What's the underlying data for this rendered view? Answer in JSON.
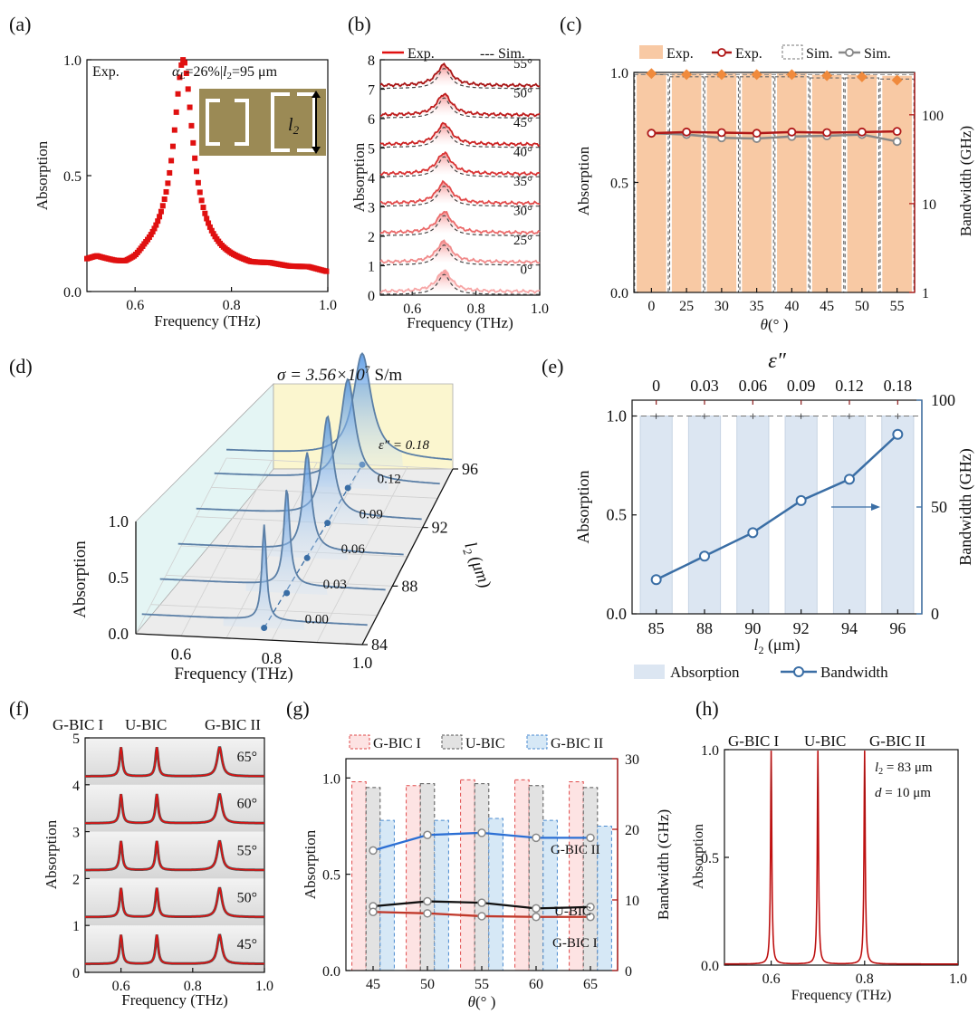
{
  "colors": {
    "red": "#e01010",
    "dark_red": "#b01818",
    "dark_red2": "#8b1a1a",
    "gray": "#777777",
    "orange_fill": "#f8c9a4",
    "orange_marker": "#f08a3c",
    "blue": "#3a6ea5",
    "light_blue": "#dce6f2",
    "pink": "#f07a82",
    "bright_blue": "#2b6fd4",
    "black": "#111111",
    "inset_gold": "#9b8a55"
  },
  "chart_data": [
    {
      "panel": "(a)",
      "type": "line",
      "xlabel": "Frequency (THz)",
      "ylabel": "Absorption",
      "xlim": [
        0.5,
        1.0
      ],
      "ylim": [
        0.0,
        1.0
      ],
      "xticks": [
        "0.6",
        "0.8",
        "1.0"
      ],
      "yticks": [
        "0.0",
        "0.5",
        "1.0"
      ],
      "legend_label": "Exp.",
      "annotation": "αL=26%|l2=95 μm",
      "annotation_parts": [
        "α",
        "L",
        "=26%|",
        "l",
        "2",
        "=95 μm"
      ],
      "inset_label": [
        "l",
        "2"
      ],
      "resonance": {
        "f0": 0.7,
        "gamma": 0.0235,
        "peak": 1.0
      },
      "baseline": [
        [
          0.5,
          0.13
        ],
        [
          0.52,
          0.14
        ],
        [
          0.54,
          0.125
        ],
        [
          0.56,
          0.11
        ],
        [
          0.58,
          0.1
        ],
        [
          0.6,
          0.11
        ],
        [
          0.62,
          0.14
        ],
        [
          0.66,
          0.18
        ],
        [
          0.7,
          0.18
        ],
        [
          0.74,
          0.16
        ],
        [
          0.78,
          0.13
        ],
        [
          0.8,
          0.12
        ],
        [
          0.84,
          0.105
        ],
        [
          0.88,
          0.11
        ],
        [
          0.92,
          0.1
        ],
        [
          0.96,
          0.1
        ],
        [
          1.0,
          0.08
        ]
      ]
    },
    {
      "panel": "(b)",
      "type": "line",
      "xlabel": "Frequency (THz)",
      "ylabel": "Absorption",
      "xlim": [
        0.5,
        1.0
      ],
      "ylim": [
        0,
        8
      ],
      "xticks": [
        "0.6",
        "0.8",
        "1.0"
      ],
      "yticks": [
        "0",
        "1",
        "2",
        "3",
        "4",
        "5",
        "6",
        "7",
        "8"
      ],
      "legend": [
        "Exp.",
        "--- Sim."
      ],
      "series": [
        {
          "angle": "0°",
          "offset": 0,
          "amp": 0.95
        },
        {
          "angle": "25°",
          "offset": 1,
          "amp": 0.95
        },
        {
          "angle": "30°",
          "offset": 2,
          "amp": 0.95
        },
        {
          "angle": "35°",
          "offset": 3,
          "amp": 0.95
        },
        {
          "angle": "40°",
          "offset": 4,
          "amp": 0.95
        },
        {
          "angle": "45°",
          "offset": 5,
          "amp": 0.95
        },
        {
          "angle": "50°",
          "offset": 6,
          "amp": 0.95
        },
        {
          "angle": "55°",
          "offset": 7,
          "amp": 0.95
        }
      ]
    },
    {
      "panel": "(c)",
      "type": "bar",
      "xlabel": "θ(° )",
      "xlabel_parts": [
        "θ",
        "(° )"
      ],
      "ylabel": "Absorption",
      "y2label": "Bandwidth (GHz)",
      "categories": [
        "0",
        "25",
        "30",
        "35",
        "40",
        "45",
        "50",
        "55"
      ],
      "ylim": [
        0.0,
        1.0
      ],
      "yticks": [
        "0.0",
        "0.5",
        "1.0"
      ],
      "y2_log_range": [
        1,
        300
      ],
      "y2ticks": [
        "1",
        "10",
        "100"
      ],
      "legend": [
        "Exp.",
        "Exp.",
        "Sim.",
        "Sim."
      ],
      "series": [
        {
          "name": "Exp. absorption (bars)",
          "values": [
            0.995,
            0.995,
            0.995,
            0.995,
            0.995,
            0.99,
            0.99,
            0.985
          ]
        },
        {
          "name": "Sim. absorption (dashed bars)",
          "values": [
            0.99,
            0.98,
            0.98,
            0.98,
            0.98,
            0.975,
            0.975,
            0.97
          ]
        },
        {
          "name": "Exp. absorption markers",
          "values": [
            0.995,
            0.99,
            0.99,
            0.99,
            0.99,
            0.985,
            0.98,
            0.965
          ]
        },
        {
          "name": "Exp. bandwidth (GHz)",
          "values": [
            62,
            64,
            63,
            62,
            64,
            63,
            64,
            65
          ]
        },
        {
          "name": "Sim. bandwidth (GHz)",
          "values": [
            62,
            60,
            55,
            54,
            57,
            58,
            60,
            50
          ]
        }
      ]
    },
    {
      "panel": "(d)",
      "type": "line",
      "title": "σ = 3.56×10^7 S/m",
      "title_parts": [
        "σ = 3.56×10",
        "7",
        " S/m"
      ],
      "xlabel": "Frequency (THz)",
      "ylabel": "Absorption",
      "zlabel": [
        "l",
        "2",
        " (μm)"
      ],
      "xticks": [
        "0.6",
        "0.8",
        "1.0"
      ],
      "yticks": [
        "0.0",
        "0.5",
        "1.0"
      ],
      "zticks": [
        "84",
        "88",
        "92",
        "96"
      ],
      "eps_label": "ε″ = 0.18",
      "series": [
        {
          "l2": 84.8,
          "eps": "0.00",
          "f0": 0.77,
          "width": 0.006,
          "peak": 0.85
        },
        {
          "l2": 87.2,
          "eps": "0.03",
          "f0": 0.78,
          "width": 0.008,
          "peak": 0.86
        },
        {
          "l2": 89.6,
          "eps": "0.06",
          "f0": 0.785,
          "width": 0.011,
          "peak": 0.87
        },
        {
          "l2": 92.0,
          "eps": "0.09",
          "f0": 0.79,
          "width": 0.015,
          "peak": 0.88
        },
        {
          "l2": 94.4,
          "eps": "0.12",
          "f0": 0.795,
          "width": 0.019,
          "peak": 0.9
        },
        {
          "l2": 96.0,
          "eps": "0.18",
          "f0": 0.8,
          "width": 0.024,
          "peak": 0.92
        }
      ]
    },
    {
      "panel": "(e)",
      "type": "bar",
      "top_axis_label": "ε″",
      "top_ticks": [
        "0",
        "0.03",
        "0.06",
        "0.09",
        "0.12",
        "0.18"
      ],
      "xlabel": "l2 (μm)",
      "xlabel_parts": [
        "l",
        "2",
        " (μm)"
      ],
      "ylabel": "Absorption",
      "y2label": "Bandwidth (GHz)",
      "categories": [
        "85",
        "88",
        "90",
        "92",
        "94",
        "96"
      ],
      "ylim": [
        0.0,
        1.0
      ],
      "yticks": [
        "0.0",
        "0.5",
        "1.0"
      ],
      "y2lim": [
        0,
        100
      ],
      "y2ticks": [
        "0",
        "50",
        "100"
      ],
      "legend": [
        "Absorption",
        "Bandwidth"
      ],
      "series": [
        {
          "name": "Absorption",
          "values": [
            1.0,
            1.0,
            1.0,
            1.0,
            1.0,
            1.0
          ]
        },
        {
          "name": "Bandwidth",
          "values": [
            16,
            27,
            38,
            53,
            63,
            84
          ]
        }
      ]
    },
    {
      "panel": "(f)",
      "type": "line",
      "xlabel": "Frequency (THz)",
      "ylabel": "Absorption",
      "xlim": [
        0.5,
        1.0
      ],
      "ylim": [
        0,
        5
      ],
      "xticks": [
        "0.6",
        "0.8",
        "1.0"
      ],
      "yticks": [
        "0",
        "1",
        "2",
        "3",
        "4",
        "5"
      ],
      "labels": [
        "G-BIC I",
        "U-BIC",
        "G-BIC II"
      ],
      "peaks": [
        0.6,
        0.7,
        0.875
      ],
      "series": [
        {
          "angle": "45°",
          "offset": 0
        },
        {
          "angle": "50°",
          "offset": 1
        },
        {
          "angle": "55°",
          "offset": 2
        },
        {
          "angle": "60°",
          "offset": 3
        },
        {
          "angle": "65°",
          "offset": 4
        }
      ]
    },
    {
      "panel": "(g)",
      "type": "bar",
      "xlabel": "θ(° )",
      "xlabel_parts": [
        "θ",
        "(° )"
      ],
      "ylabel": "Absorption",
      "y2label": "Bandwidth (GHz)",
      "categories": [
        "45",
        "50",
        "55",
        "60",
        "65"
      ],
      "ylim": [
        0.0,
        1.0
      ],
      "yticks": [
        "0.0",
        "0.5",
        "1.0"
      ],
      "y2lim": [
        0,
        30
      ],
      "y2ticks": [
        "0",
        "10",
        "20",
        "30"
      ],
      "legend": [
        "G-BIC I",
        "U-BIC",
        "G-BIC II"
      ],
      "line_labels": [
        "G-BIC II",
        "U-BIC",
        "G-BIC I"
      ],
      "series": [
        {
          "name": "G-BIC I absorption",
          "values": [
            0.98,
            0.96,
            0.99,
            0.99,
            0.98
          ]
        },
        {
          "name": "U-BIC absorption",
          "values": [
            0.95,
            0.97,
            0.97,
            0.96,
            0.95
          ]
        },
        {
          "name": "G-BIC II absorption",
          "values": [
            0.78,
            0.78,
            0.79,
            0.78,
            0.75
          ]
        },
        {
          "name": "G-BIC II bandwidth (GHz)",
          "values": [
            17,
            19.2,
            19.5,
            18.8,
            18.8
          ]
        },
        {
          "name": "U-BIC bandwidth (GHz)",
          "values": [
            9.1,
            9.8,
            9.6,
            8.8,
            9.0
          ]
        },
        {
          "name": "G-BIC I bandwidth (GHz)",
          "values": [
            8.3,
            8.1,
            7.7,
            7.6,
            7.6
          ]
        }
      ]
    },
    {
      "panel": "(h)",
      "type": "line",
      "xlabel": "Frequency (THz)",
      "ylabel": "Absorption",
      "xlim": [
        0.5,
        1.0
      ],
      "ylim": [
        0.0,
        1.0
      ],
      "xticks": [
        "0.6",
        "0.8",
        "1.0"
      ],
      "yticks": [
        "0.0",
        "0.5",
        "1.0"
      ],
      "labels": [
        "G-BIC I",
        "U-BIC",
        "G-BIC II"
      ],
      "annotations": [
        "l2 = 83 μm",
        "d = 10 μm"
      ],
      "annotation_parts": [
        [
          "l",
          "2",
          " = 83 μm"
        ],
        [
          "d",
          " = 10 μm"
        ]
      ],
      "peaks": [
        0.6,
        0.7,
        0.8
      ]
    }
  ]
}
